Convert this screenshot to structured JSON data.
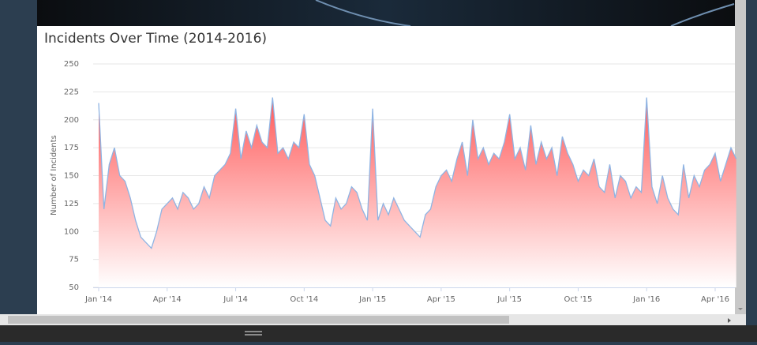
{
  "chart_data": {
    "type": "area",
    "title": "Incidents Over Time (2014-2016)",
    "y_label": "Number of Incidents",
    "categories": [
      "Jan '14",
      null,
      null,
      null,
      null,
      null,
      null,
      null,
      null,
      null,
      null,
      null,
      null,
      "Apr '14",
      null,
      null,
      null,
      null,
      null,
      null,
      null,
      null,
      null,
      null,
      null,
      null,
      "Jul '14",
      null,
      null,
      null,
      null,
      null,
      null,
      null,
      null,
      null,
      null,
      null,
      null,
      "Oct '14",
      null,
      null,
      null,
      null,
      null,
      null,
      null,
      null,
      null,
      null,
      null,
      null,
      "Jan '15",
      null,
      null,
      null,
      null,
      null,
      null,
      null,
      null,
      null,
      null,
      null,
      null,
      "Apr '15",
      null,
      null,
      null,
      null,
      null,
      null,
      null,
      null,
      null,
      null,
      null,
      null,
      "Jul '15",
      null,
      null,
      null,
      null,
      null,
      null,
      null,
      null,
      null,
      null,
      null,
      null,
      "Oct '15",
      null,
      null,
      null,
      null,
      null,
      null,
      null,
      null,
      null,
      null,
      null,
      null,
      "Jan '16",
      null,
      null,
      null,
      null,
      null,
      null,
      null,
      null,
      null,
      null,
      null,
      null,
      "Apr '16",
      null,
      null,
      null,
      null
    ],
    "values": [
      215,
      120,
      160,
      175,
      150,
      145,
      130,
      110,
      95,
      90,
      85,
      100,
      120,
      125,
      130,
      120,
      135,
      130,
      120,
      125,
      140,
      130,
      150,
      155,
      160,
      170,
      210,
      165,
      190,
      175,
      195,
      180,
      175,
      220,
      170,
      175,
      165,
      180,
      175,
      205,
      160,
      150,
      130,
      110,
      105,
      130,
      120,
      125,
      140,
      135,
      120,
      110,
      210,
      110,
      125,
      115,
      130,
      120,
      110,
      105,
      100,
      95,
      115,
      120,
      140,
      150,
      155,
      145,
      165,
      180,
      150,
      200,
      165,
      175,
      160,
      170,
      165,
      180,
      205,
      165,
      175,
      155,
      195,
      160,
      180,
      165,
      175,
      150,
      185,
      170,
      160,
      145,
      155,
      150,
      165,
      140,
      135,
      160,
      130,
      150,
      145,
      130,
      140,
      135,
      220,
      140,
      125,
      150,
      130,
      120,
      115,
      160,
      130,
      150,
      140,
      155,
      160,
      170,
      145,
      160,
      175,
      165
    ],
    "color": "#8fb4e3",
    "fill_color": "#ff5a5a",
    "ylim": [
      50,
      250
    ],
    "yticks": [
      50,
      75,
      100,
      125,
      150,
      175,
      200,
      225,
      250
    ],
    "grid": true
  }
}
